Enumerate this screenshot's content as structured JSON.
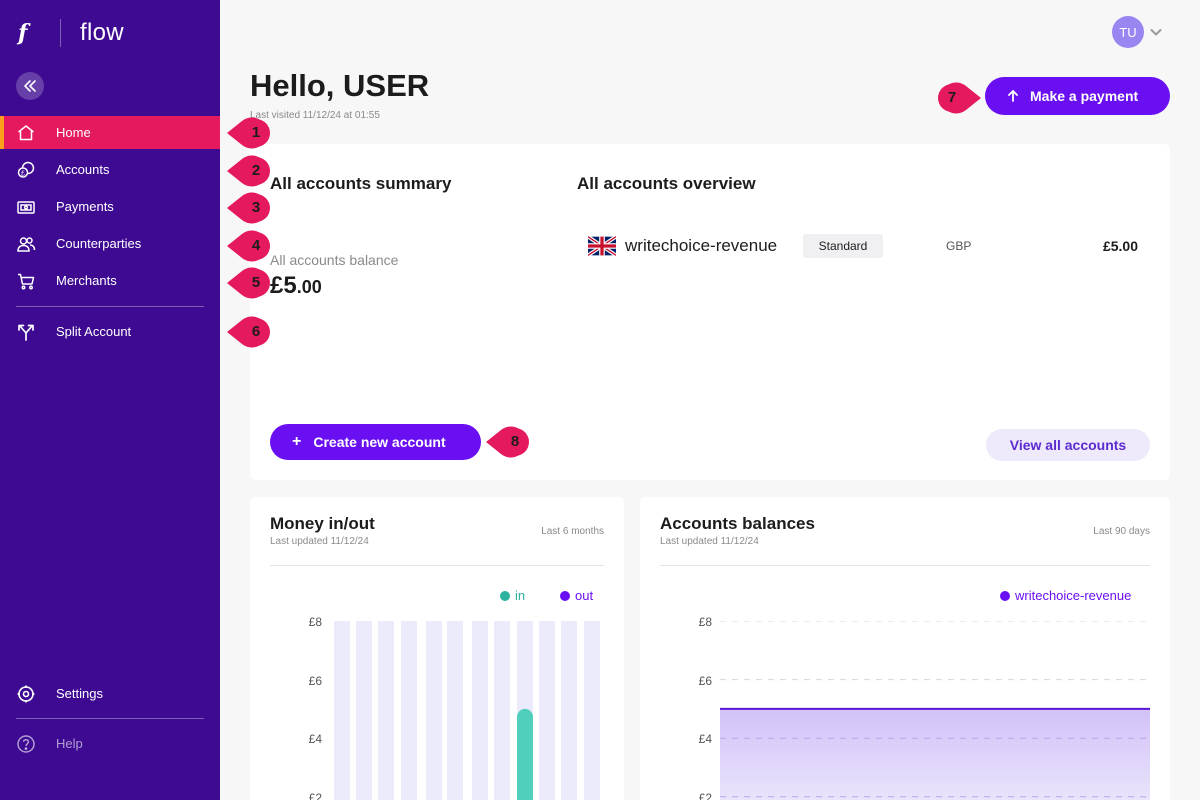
{
  "sidebar": {
    "brand_letter": "f",
    "brand_name": "flow",
    "nav": [
      {
        "label": "Home",
        "icon": "home-icon"
      },
      {
        "label": "Accounts",
        "icon": "coins-icon"
      },
      {
        "label": "Payments",
        "icon": "banknote-icon"
      },
      {
        "label": "Counterparties",
        "icon": "users-icon"
      },
      {
        "label": "Merchants",
        "icon": "cart-icon"
      },
      {
        "label": "Split Account",
        "icon": "split-icon"
      }
    ],
    "settings_label": "Settings",
    "help_label": "Help"
  },
  "markers": [
    "1",
    "2",
    "3",
    "4",
    "5",
    "6",
    "7",
    "8"
  ],
  "header": {
    "avatar_initials": "TU",
    "greeting": "Hello, USER",
    "last_visited": "Last visited 11/12/24 at 01:55",
    "make_payment_label": "Make a payment"
  },
  "summary": {
    "left_title": "All accounts summary",
    "right_title": "All accounts overview",
    "balance_label": "All accounts balance",
    "balance_whole": "£5",
    "balance_decimal": ".00",
    "accounts": [
      {
        "name": "writechoice-revenue",
        "type": "Standard",
        "currency": "GBP",
        "balance": "£5.00"
      }
    ],
    "create_label": "Create new account",
    "view_all_label": "View all accounts"
  },
  "money_card": {
    "title": "Money in/out",
    "updated": "Last updated 11/12/24",
    "range": "Last 6 months",
    "legend_in": "in",
    "legend_out": "out"
  },
  "balances_card": {
    "title": "Accounts balances",
    "updated": "Last updated 11/12/24",
    "range": "Last 90 days",
    "legend": "writechoice-revenue"
  },
  "colors": {
    "sidebar": "#3d0a91",
    "active": "#e5195e",
    "primary": "#6a0ff2",
    "in": "#2bb3a0",
    "out": "#6a0ff2"
  },
  "chart_data": [
    {
      "type": "bar",
      "title": "Money in/out",
      "series": [
        {
          "name": "in",
          "values": [
            0,
            0,
            0,
            0,
            0,
            0,
            0,
            0,
            0,
            0,
            0,
            5,
            0,
            0,
            0
          ]
        },
        {
          "name": "out",
          "values": [
            0,
            0,
            0,
            0,
            0,
            0,
            0,
            0,
            0,
            0,
            0,
            0,
            0,
            0,
            0
          ]
        }
      ],
      "yticks": [
        "£8",
        "£6",
        "£4",
        "£2"
      ],
      "ylim": [
        0,
        8
      ],
      "grid": false,
      "legend": "top-right"
    },
    {
      "type": "area",
      "title": "Accounts balances",
      "series": [
        {
          "name": "writechoice-revenue",
          "values": [
            5,
            5
          ]
        }
      ],
      "yticks": [
        "£8",
        "£6",
        "£4",
        "£2"
      ],
      "ylim": [
        0,
        8
      ],
      "grid": true,
      "legend": "top-right"
    }
  ]
}
